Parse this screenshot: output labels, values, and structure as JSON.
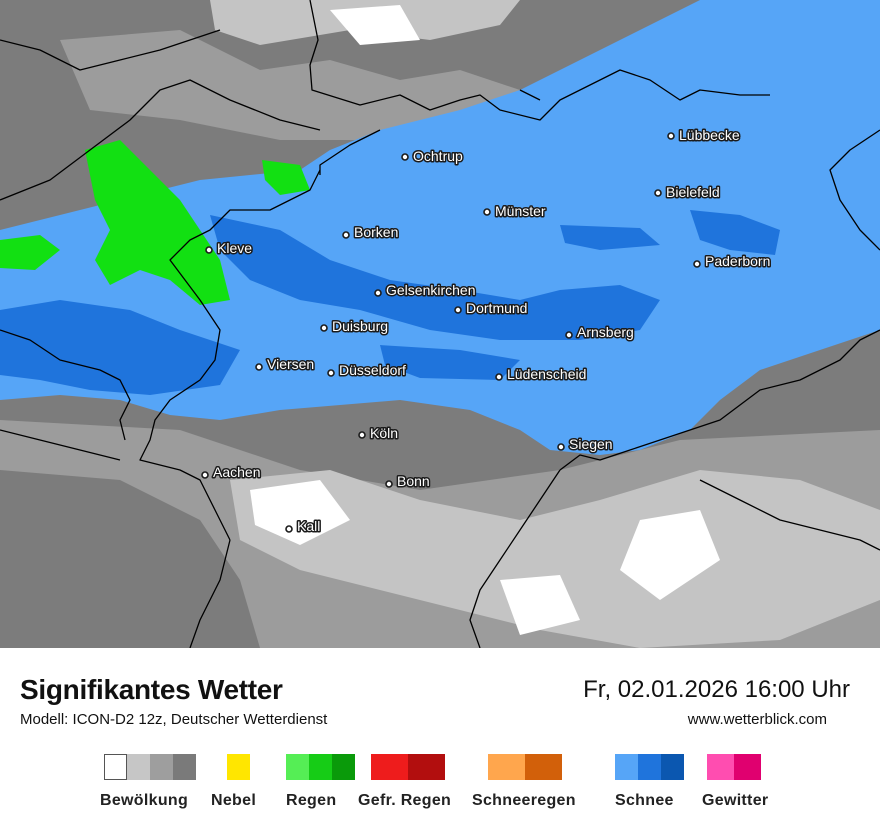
{
  "map": {
    "colors": {
      "snow_light": "#56a5f7",
      "snow_medium": "#1f74dc",
      "snow_heavy": "#0b57b0",
      "cloud_dark": "#7c7c7c",
      "cloud_medium": "#9c9c9c",
      "cloud_light": "#c4c4c4",
      "clear": "#ffffff",
      "rain": "#12e012",
      "border": "#000000"
    },
    "cities": [
      {
        "name": "Lübbecke"
      },
      {
        "name": "Ochtrup"
      },
      {
        "name": "Bielefeld"
      },
      {
        "name": "Münster"
      },
      {
        "name": "Borken"
      },
      {
        "name": "Kleve"
      },
      {
        "name": "Paderborn"
      },
      {
        "name": "Gelsenkirchen"
      },
      {
        "name": "Dortmund"
      },
      {
        "name": "Duisburg"
      },
      {
        "name": "Arnsberg"
      },
      {
        "name": "Viersen"
      },
      {
        "name": "Düsseldorf"
      },
      {
        "name": "Lüdenscheid"
      },
      {
        "name": "Köln"
      },
      {
        "name": "Siegen"
      },
      {
        "name": "Aachen"
      },
      {
        "name": "Bonn"
      },
      {
        "name": "Kall"
      }
    ]
  },
  "footer": {
    "title": "Signifikantes Wetter",
    "subtitle": "Modell: ICON-D2 12z, Deutscher Wetterdienst",
    "datetime": "Fr, 02.01.2026 16:00 Uhr",
    "website": "www.wetterblick.com"
  },
  "legend": [
    {
      "label": "Bewölkung",
      "colors": [
        "#ffffff",
        "#c6c6c6",
        "#9e9e9e",
        "#7a7a7a"
      ]
    },
    {
      "label": "Nebel",
      "colors": [
        "#ffe600"
      ]
    },
    {
      "label": "Regen",
      "colors": [
        "#55ee55",
        "#16cc16",
        "#0a9a0a"
      ]
    },
    {
      "label": "Gefr. Regen",
      "colors": [
        "#ee1c1c",
        "#b20e0e"
      ]
    },
    {
      "label": "Schneeregen",
      "colors": [
        "#ffa64d",
        "#d2600a"
      ]
    },
    {
      "label": "Schnee",
      "colors": [
        "#56a5f7",
        "#1f74dc",
        "#0b57b0"
      ]
    },
    {
      "label": "Gewitter",
      "colors": [
        "#ff4db0",
        "#e0006f"
      ]
    }
  ]
}
